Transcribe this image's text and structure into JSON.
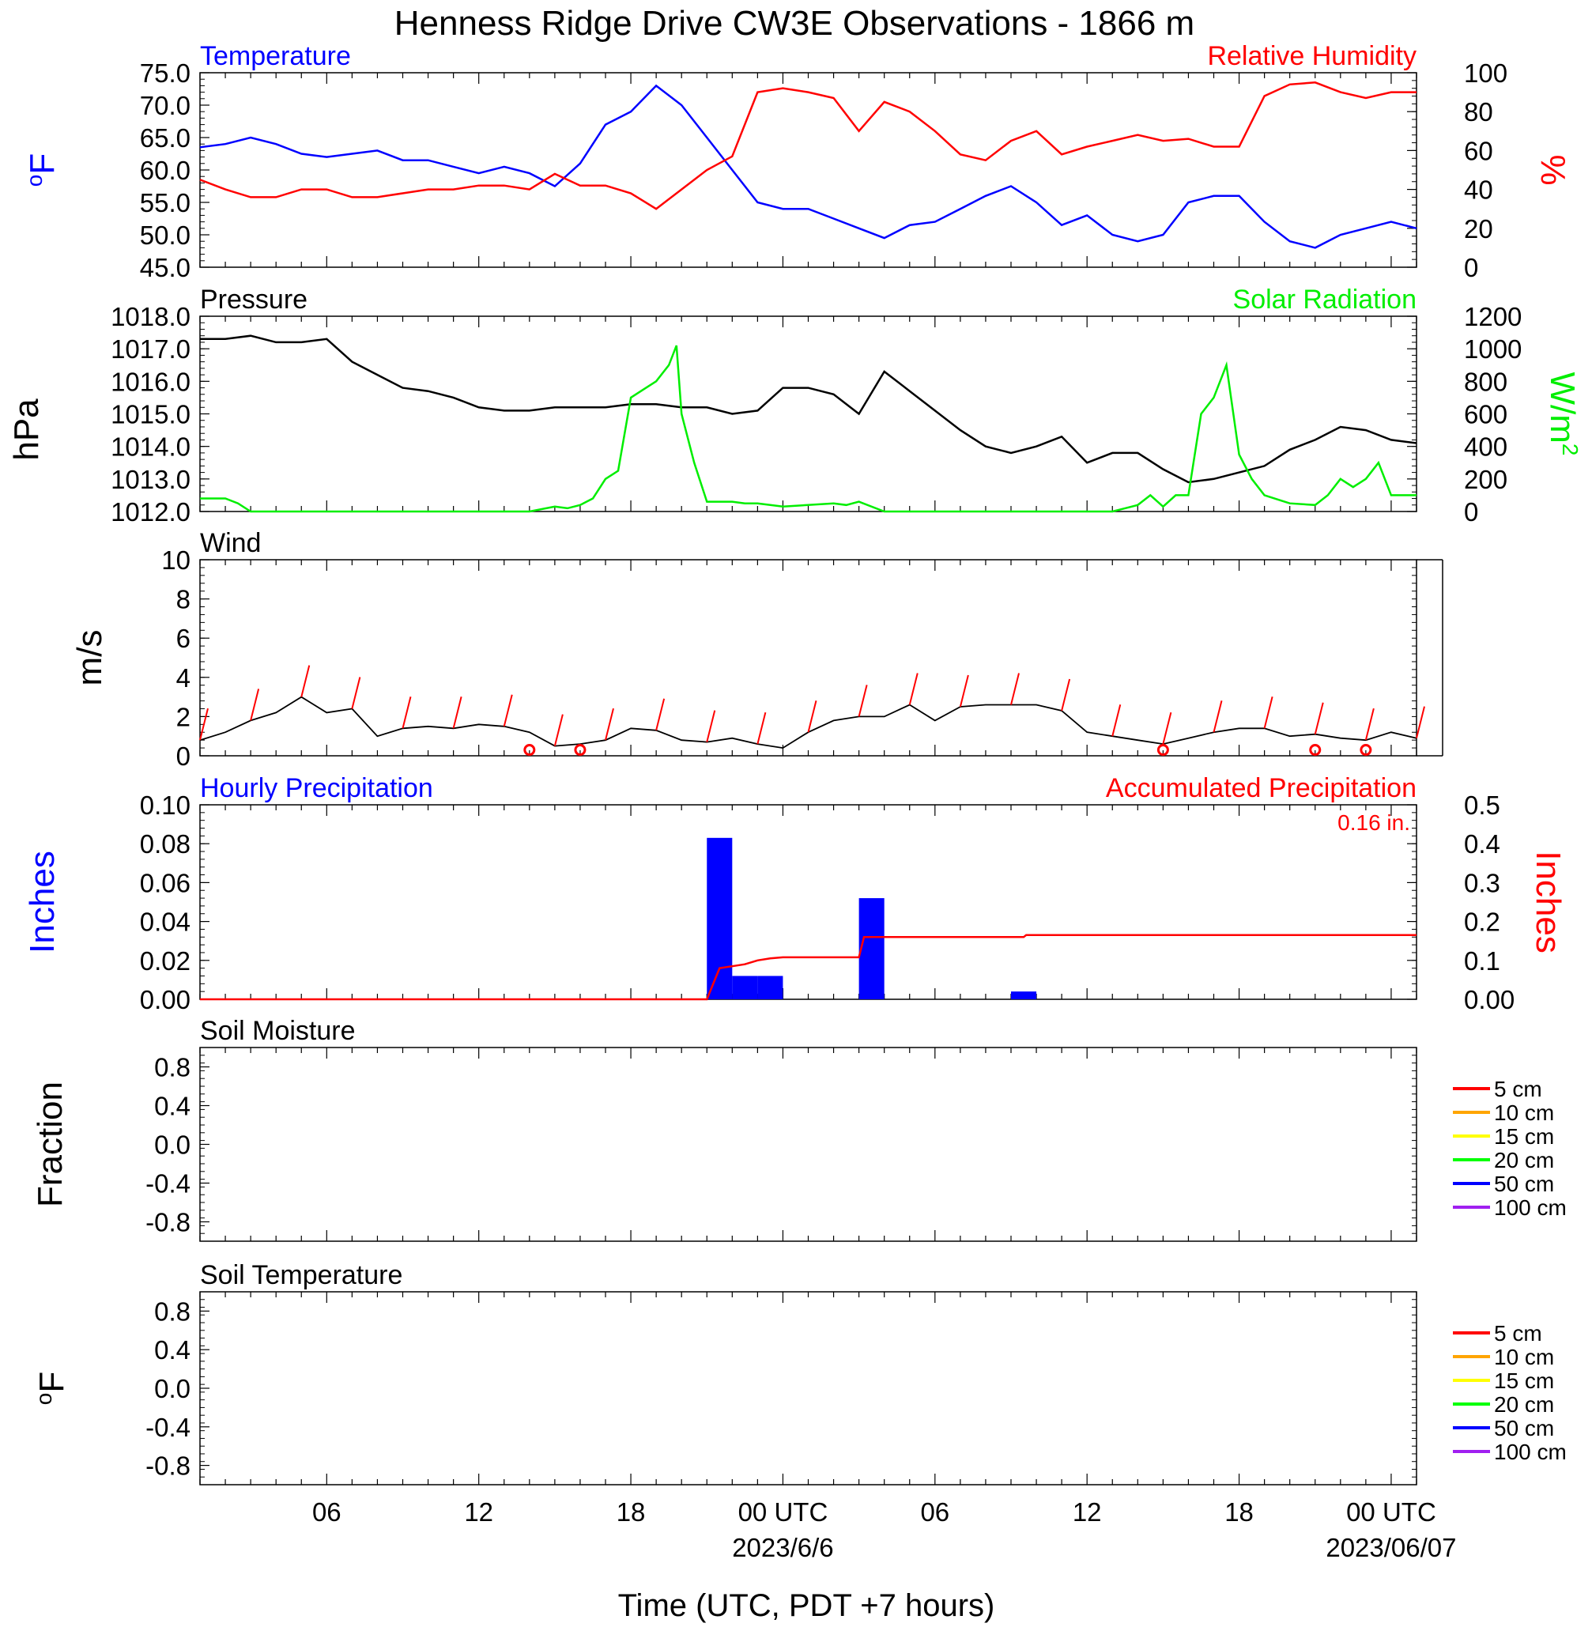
{
  "title": "Henness Ridge Drive CW3E Observations - 1866 m",
  "x_axis": {
    "title": "Time (UTC, PDT +7 hours)",
    "range_hours": [
      0,
      48
    ],
    "major_ticks": [
      {
        "hour": 5,
        "label": "06"
      },
      {
        "hour": 11,
        "label": "12"
      },
      {
        "hour": 17,
        "label": "18"
      },
      {
        "hour": 23,
        "label": "00 UTC"
      },
      {
        "hour": 29,
        "label": "06"
      },
      {
        "hour": 35,
        "label": "12"
      },
      {
        "hour": 41,
        "label": "18"
      },
      {
        "hour": 47,
        "label": "00 UTC"
      }
    ],
    "date_labels": [
      {
        "hour": 23,
        "label": "2023/6/6"
      },
      {
        "hour": 47,
        "label": "2023/06/07"
      }
    ]
  },
  "colors": {
    "temperature": "#0000ff",
    "humidity": "#ff0000",
    "pressure": "#000000",
    "solar": "#00ee00",
    "wind": "#000000",
    "barb": "#ff0000",
    "hourly_precip": "#0000ff",
    "accum_precip": "#ff0000"
  },
  "chart_data": [
    {
      "type": "line",
      "panel": "temperature-humidity",
      "left_title": "Temperature",
      "right_title": "Relative Humidity",
      "ylabel_left": "oF",
      "ylabel_right": "%",
      "ylim_left": [
        45,
        75
      ],
      "ylim_right": [
        0,
        100
      ],
      "yticks_left": [
        "45.0",
        "50.0",
        "55.0",
        "60.0",
        "65.0",
        "70.0",
        "75.0"
      ],
      "yticks_right": [
        "0",
        "20",
        "40",
        "60",
        "80",
        "100"
      ],
      "series": [
        {
          "name": "Temperature",
          "axis": "left",
          "x": [
            0,
            1,
            2,
            3,
            4,
            5,
            6,
            7,
            8,
            9,
            10,
            11,
            12,
            13,
            14,
            15,
            16,
            17,
            18,
            19,
            20,
            21,
            22,
            23,
            24,
            25,
            26,
            27,
            28,
            29,
            30,
            31,
            32,
            33,
            34,
            35,
            36,
            37,
            38,
            39,
            40,
            41,
            42,
            43,
            44,
            45,
            46,
            47,
            48
          ],
          "y": [
            63.5,
            64,
            65,
            64,
            62.5,
            62,
            62.5,
            63,
            61.5,
            61.5,
            60.5,
            59.5,
            60.5,
            59.5,
            57.5,
            61,
            67,
            69,
            73,
            70,
            65,
            60,
            55,
            54,
            54,
            52.5,
            51,
            49.5,
            51.5,
            52,
            54,
            56,
            57.5,
            55,
            51.5,
            53,
            50,
            49,
            50,
            55,
            56,
            56,
            52,
            49,
            48,
            50,
            51,
            52,
            51
          ]
        },
        {
          "name": "Relative Humidity",
          "axis": "right",
          "x": [
            0,
            1,
            2,
            3,
            4,
            5,
            6,
            7,
            8,
            9,
            10,
            11,
            12,
            13,
            14,
            15,
            16,
            17,
            18,
            19,
            20,
            21,
            22,
            23,
            24,
            25,
            26,
            27,
            28,
            29,
            30,
            31,
            32,
            33,
            34,
            35,
            36,
            37,
            38,
            39,
            40,
            41,
            42,
            43,
            44,
            45,
            46,
            47,
            48
          ],
          "y": [
            45,
            40,
            36,
            36,
            40,
            40,
            36,
            36,
            38,
            40,
            40,
            42,
            42,
            40,
            48,
            42,
            42,
            38,
            30,
            40,
            50,
            57,
            90,
            92,
            90,
            87,
            70,
            85,
            80,
            70,
            58,
            55,
            65,
            70,
            58,
            62,
            65,
            68,
            65,
            66,
            62,
            62,
            88,
            94,
            95,
            90,
            87,
            90,
            90
          ]
        }
      ]
    },
    {
      "type": "line",
      "panel": "pressure-solar",
      "left_title": "Pressure",
      "right_title": "Solar Radiation",
      "ylabel_left": "hPa",
      "ylabel_right": "W/m2",
      "ylim_left": [
        1012,
        1018
      ],
      "ylim_right": [
        0,
        1200
      ],
      "yticks_left": [
        "1012.0",
        "1013.0",
        "1014.0",
        "1015.0",
        "1016.0",
        "1017.0",
        "1018.0"
      ],
      "yticks_right": [
        "0",
        "200",
        "400",
        "600",
        "800",
        "1000",
        "1200"
      ],
      "series": [
        {
          "name": "Pressure",
          "axis": "left",
          "x": [
            0,
            1,
            2,
            3,
            4,
            5,
            6,
            7,
            8,
            9,
            10,
            11,
            12,
            13,
            14,
            15,
            16,
            17,
            18,
            19,
            20,
            21,
            22,
            23,
            24,
            25,
            26,
            27,
            28,
            29,
            30,
            31,
            32,
            33,
            34,
            35,
            36,
            37,
            38,
            39,
            40,
            41,
            42,
            43,
            44,
            45,
            46,
            47,
            48
          ],
          "y": [
            1017.3,
            1017.3,
            1017.4,
            1017.2,
            1017.2,
            1017.3,
            1016.6,
            1016.2,
            1015.8,
            1015.7,
            1015.5,
            1015.2,
            1015.1,
            1015.1,
            1015.2,
            1015.2,
            1015.2,
            1015.3,
            1015.3,
            1015.2,
            1015.2,
            1015.0,
            1015.1,
            1015.8,
            1015.8,
            1015.6,
            1015.0,
            1016.3,
            1015.7,
            1015.1,
            1014.5,
            1014.0,
            1013.8,
            1014.0,
            1014.3,
            1013.5,
            1013.8,
            1013.8,
            1013.3,
            1012.9,
            1013.0,
            1013.2,
            1013.4,
            1013.9,
            1014.2,
            1014.6,
            1014.5,
            1014.2,
            1014.1
          ]
        },
        {
          "name": "Solar Radiation",
          "axis": "right",
          "x": [
            0,
            1,
            1.5,
            2,
            5,
            10,
            12,
            13,
            14,
            14.5,
            15,
            15.5,
            16,
            16.5,
            17,
            17.5,
            18,
            18.5,
            18.8,
            19,
            19.5,
            20,
            21,
            21.5,
            22,
            23,
            25,
            25.5,
            26,
            27,
            30,
            35,
            36,
            36.5,
            37,
            37.5,
            38,
            38.5,
            39,
            39.5,
            40,
            40.5,
            41,
            41.5,
            42,
            43,
            44,
            44.5,
            45,
            45.5,
            46,
            46.5,
            47,
            48
          ],
          "y": [
            80,
            80,
            50,
            0,
            0,
            0,
            0,
            0,
            30,
            20,
            40,
            80,
            200,
            250,
            700,
            750,
            800,
            900,
            1020,
            600,
            300,
            60,
            60,
            50,
            50,
            30,
            50,
            40,
            60,
            0,
            0,
            0,
            0,
            20,
            40,
            100,
            30,
            100,
            100,
            600,
            700,
            900,
            350,
            200,
            100,
            50,
            40,
            100,
            200,
            150,
            200,
            300,
            100,
            100
          ]
        }
      ]
    },
    {
      "type": "line",
      "panel": "wind",
      "left_title": "Wind",
      "ylabel_left": "m/s",
      "ylim_left": [
        0,
        10
      ],
      "yticks_left": [
        "0",
        "2",
        "4",
        "6",
        "8",
        "10"
      ],
      "series": [
        {
          "name": "Wind",
          "axis": "left",
          "x": [
            0,
            1,
            2,
            3,
            4,
            5,
            6,
            7,
            8,
            9,
            10,
            11,
            12,
            13,
            14,
            15,
            16,
            17,
            18,
            19,
            20,
            21,
            22,
            23,
            24,
            25,
            26,
            27,
            28,
            29,
            30,
            31,
            32,
            33,
            34,
            35,
            36,
            37,
            38,
            39,
            40,
            41,
            42,
            43,
            44,
            45,
            46,
            47,
            48
          ],
          "y": [
            0.8,
            1.2,
            1.8,
            2.2,
            3,
            2.2,
            2.4,
            1,
            1.4,
            1.5,
            1.4,
            1.6,
            1.5,
            1.2,
            0.5,
            0.6,
            0.8,
            1.4,
            1.3,
            0.8,
            0.7,
            0.9,
            0.6,
            0.4,
            1.2,
            1.8,
            2,
            2,
            2.6,
            1.8,
            2.5,
            2.6,
            2.6,
            2.6,
            2.3,
            1.2,
            1,
            0.8,
            0.6,
            0.9,
            1.2,
            1.4,
            1.4,
            1,
            1.1,
            0.9,
            0.8,
            1.2,
            0.9
          ]
        }
      ],
      "calm_markers_hours": [
        13,
        15,
        38,
        44,
        46
      ]
    },
    {
      "type": "bar",
      "panel": "precipitation",
      "left_title": "Hourly Precipitation",
      "right_title": "Accumulated Precipitation",
      "total_label": "0.16 in.",
      "ylabel_left": "Inches",
      "ylabel_right": "Inches",
      "ylim_left": [
        0,
        0.1
      ],
      "ylim_right": [
        0,
        0.5
      ],
      "yticks_left": [
        "0.00",
        "0.02",
        "0.04",
        "0.06",
        "0.08",
        "0.10"
      ],
      "yticks_right": [
        "0.00",
        "0.1",
        "0.2",
        "0.3",
        "0.4",
        "0.5"
      ],
      "hourly": {
        "name": "Hourly Precipitation",
        "start_hours": [
          20,
          21,
          22,
          26,
          32
        ],
        "values": [
          0.083,
          0.012,
          0.012,
          0.052,
          0.004
        ]
      },
      "accumulated": {
        "name": "Accumulated Precipitation",
        "x": [
          0,
          20,
          20.5,
          21,
          21.5,
          22,
          22.5,
          23,
          24,
          25,
          26,
          26.2,
          27,
          32.5,
          32.6,
          48
        ],
        "y": [
          0,
          0,
          0.08,
          0.085,
          0.09,
          0.1,
          0.105,
          0.108,
          0.108,
          0.108,
          0.108,
          0.16,
          0.16,
          0.16,
          0.165,
          0.165
        ]
      }
    },
    {
      "type": "line",
      "panel": "soil-moisture",
      "left_title": "Soil Moisture",
      "ylabel_left": "Fraction",
      "ylim_left": [
        -1,
        1
      ],
      "yticks_left": [
        "-0.8",
        "-0.4",
        "0.0",
        "0.4",
        "0.8"
      ],
      "series": [],
      "legend": [
        {
          "label": "5 cm",
          "color": "#ff0000"
        },
        {
          "label": "10 cm",
          "color": "#ffa500"
        },
        {
          "label": "15 cm",
          "color": "#ffff00"
        },
        {
          "label": "20 cm",
          "color": "#00ff00"
        },
        {
          "label": "50 cm",
          "color": "#0000ff"
        },
        {
          "label": "100 cm",
          "color": "#a020f0"
        }
      ]
    },
    {
      "type": "line",
      "panel": "soil-temperature",
      "left_title": "Soil Temperature",
      "ylabel_left": "oF",
      "ylim_left": [
        -1,
        1
      ],
      "yticks_left": [
        "-0.8",
        "-0.4",
        "0.0",
        "0.4",
        "0.8"
      ],
      "series": [],
      "legend": [
        {
          "label": "5 cm",
          "color": "#ff0000"
        },
        {
          "label": "10 cm",
          "color": "#ffa500"
        },
        {
          "label": "15 cm",
          "color": "#ffff00"
        },
        {
          "label": "20 cm",
          "color": "#00ff00"
        },
        {
          "label": "50 cm",
          "color": "#0000ff"
        },
        {
          "label": "100 cm",
          "color": "#a020f0"
        }
      ]
    }
  ]
}
